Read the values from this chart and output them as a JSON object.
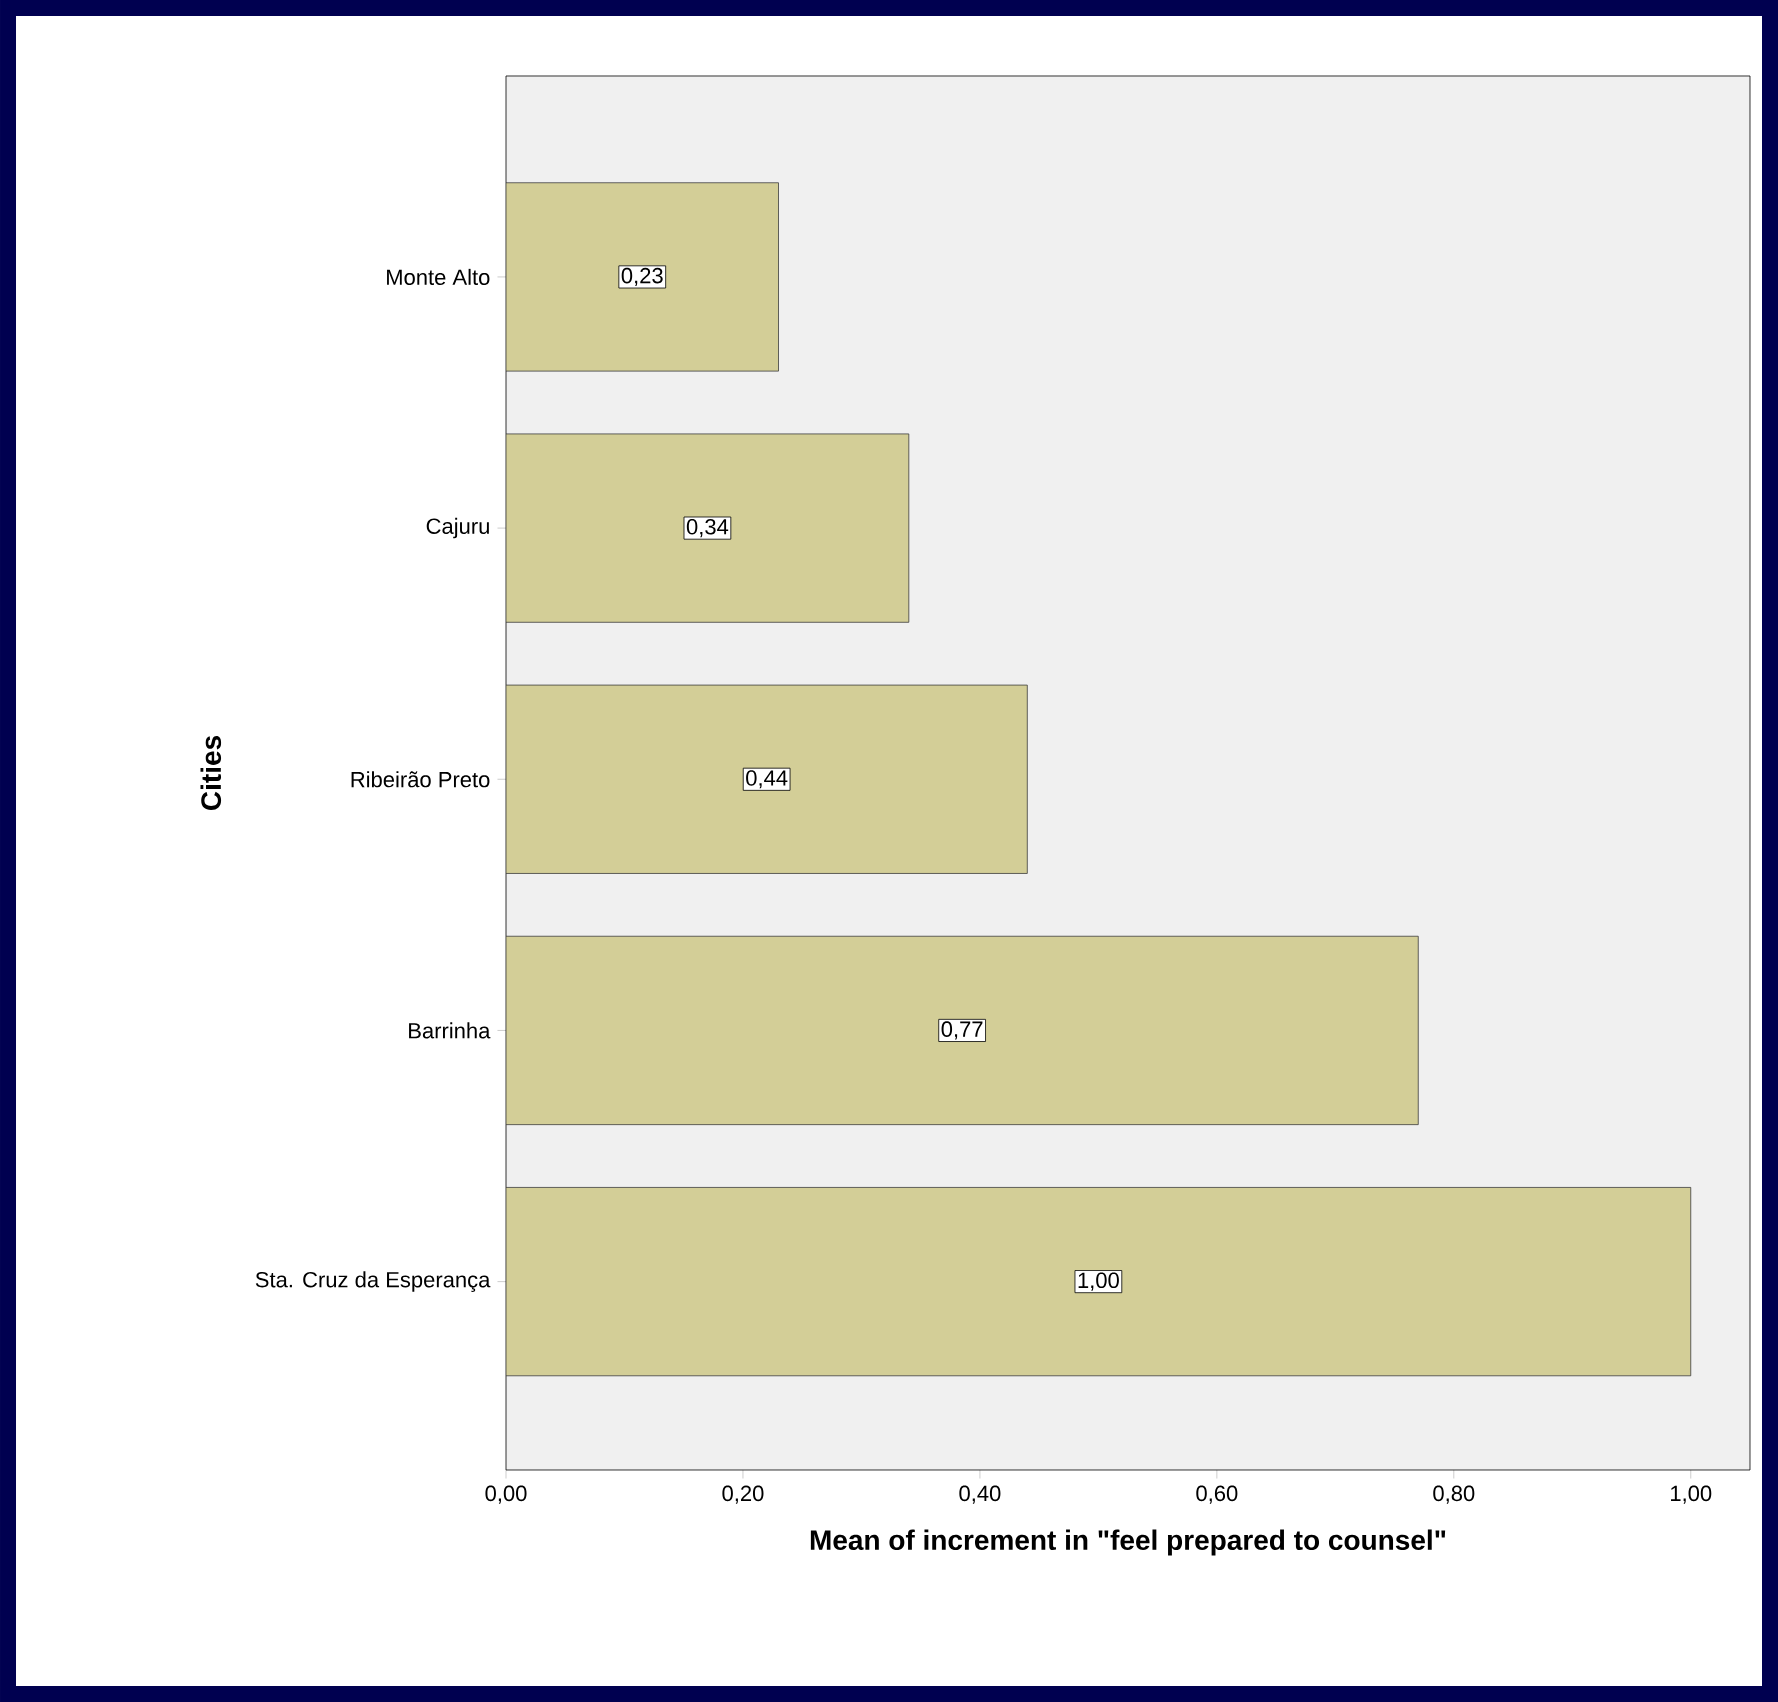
{
  "chart_data": {
    "type": "bar",
    "orientation": "horizontal",
    "xlabel": "Mean of increment in \"feel prepared to counsel\"",
    "ylabel": "Cities",
    "categories": [
      "Monte Alto",
      "Cajuru",
      "Ribeirão Preto",
      "Barrinha",
      "Sta. Cruz da Esperança"
    ],
    "values": [
      0.23,
      0.34,
      0.44,
      0.77,
      1.0
    ],
    "value_labels": [
      "0,23",
      "0,34",
      "0,44",
      "0,77",
      "1,00"
    ],
    "color": "#d3ce97",
    "xlim": [
      0,
      1.05
    ],
    "xticks": [
      {
        "value": 0,
        "label": "0,00"
      },
      {
        "value": 0.2,
        "label": "0,20"
      },
      {
        "value": 0.4,
        "label": "0,40"
      },
      {
        "value": 0.6,
        "label": "0,60"
      },
      {
        "value": 0.8,
        "label": "0,80"
      },
      {
        "value": 1.0,
        "label": "1,00"
      }
    ],
    "grid": false
  }
}
